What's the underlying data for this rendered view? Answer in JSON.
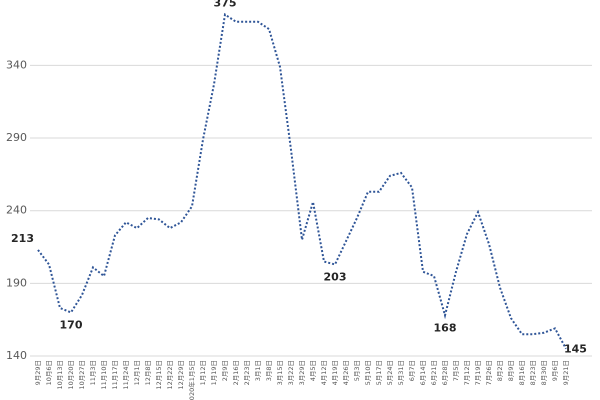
{
  "chart_data": {
    "type": "line",
    "categories": [
      "9月29日",
      "10月6日",
      "10月13日",
      "10月20日",
      "10月27日",
      "11月3日",
      "11月10日",
      "11月17日",
      "11月24日",
      "12月1日",
      "12月8日",
      "12月15日",
      "12月22日",
      "12月29日",
      "2020年1月5日",
      "1月12日",
      "1月19日",
      "2月9日",
      "2月16日",
      "2月23日",
      "3月1日",
      "3月8日",
      "3月15日",
      "3月22日",
      "3月29日",
      "4月5日",
      "4月12日",
      "4月19日",
      "4月26日",
      "5月3日",
      "5月10日",
      "5月17日",
      "5月24日",
      "5月31日",
      "6月7日",
      "6月14日",
      "6月21日",
      "6月28日",
      "7月5日",
      "7月12日",
      "7月19日",
      "7月26日",
      "8月2日",
      "8月9日",
      "8月16日",
      "8月23日",
      "8月30日",
      "9月6日",
      "9月21日"
    ],
    "series": [
      {
        "color": "#2f5597",
        "values": [
          213,
          203,
          173,
          170,
          182,
          201,
          195,
          223,
          232,
          228,
          235,
          234,
          228,
          232,
          243,
          289,
          327,
          375,
          370,
          370,
          370,
          365,
          339,
          282,
          220,
          246,
          205,
          203,
          219,
          235,
          253,
          253,
          264,
          266,
          256,
          198,
          195,
          168,
          198,
          224,
          239,
          217,
          187,
          166,
          155,
          155,
          156,
          159,
          145
        ],
        "value_labels": [
          "213",
          null,
          null,
          "170",
          null,
          null,
          null,
          null,
          null,
          null,
          null,
          null,
          null,
          null,
          null,
          null,
          null,
          "375",
          null,
          null,
          null,
          null,
          null,
          null,
          null,
          null,
          null,
          "203",
          null,
          null,
          null,
          null,
          null,
          null,
          null,
          null,
          null,
          "168",
          null,
          null,
          null,
          null,
          null,
          null,
          null,
          null,
          null,
          null,
          "145"
        ]
      }
    ],
    "ylim": [
      140,
      385
    ],
    "yticks": [
      140,
      190,
      240,
      290,
      340
    ],
    "grid": true
  }
}
